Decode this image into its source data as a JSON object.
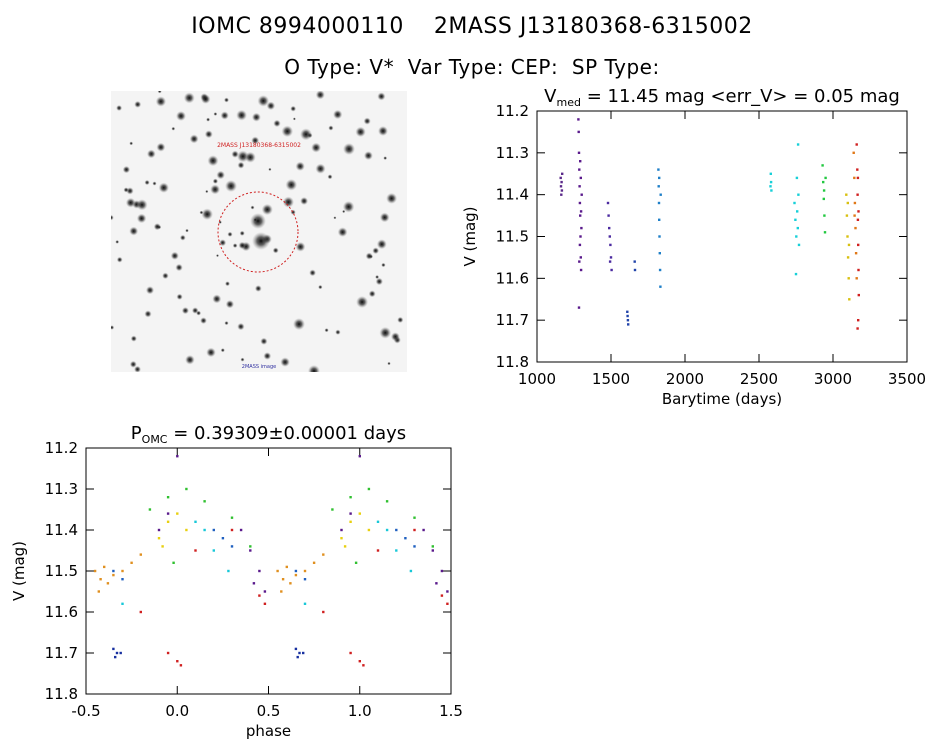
{
  "header": {
    "line1": "IOMC 8994000110    2MASS J13180368-6315002",
    "line2": "O Type: V*  Var Type: CEP:  SP Type:"
  },
  "finder": {
    "label_top": "2MASS J13180368-6315002",
    "label_bottom": "2MASS image"
  },
  "chart_data": [
    {
      "type": "scatter",
      "title_prefix": "V",
      "title_sub": "med",
      "title_rest": " = 11.45 mag <err_V> = 0.05 mag",
      "xlabel": "Barytime (days)",
      "ylabel": "V (mag)",
      "xlim": [
        1000,
        3500
      ],
      "ylim": [
        11.8,
        11.2
      ],
      "xticks": [
        "1000",
        "1500",
        "2000",
        "2500",
        "3000",
        "3500"
      ],
      "yticks": [
        "11.2",
        "11.3",
        "11.4",
        "11.5",
        "11.6",
        "11.7",
        "11.8"
      ],
      "series": [
        {
          "name": "segment 1",
          "color": "#5b2a8a",
          "points": [
            [
              1160,
              11.36
            ],
            [
              1162,
              11.38
            ],
            [
              1164,
              11.4
            ],
            [
              1166,
              11.37
            ],
            [
              1168,
              11.39
            ],
            [
              1170,
              11.35
            ]
          ]
        },
        {
          "name": "segment 2",
          "color": "#5a1a8c",
          "points": [
            [
              1280,
              11.22
            ],
            [
              1282,
              11.25
            ],
            [
              1284,
              11.3
            ],
            [
              1286,
              11.34
            ],
            [
              1288,
              11.38
            ],
            [
              1290,
              11.42
            ],
            [
              1292,
              11.45
            ],
            [
              1294,
              11.5
            ],
            [
              1296,
              11.55
            ],
            [
              1298,
              11.58
            ],
            [
              1300,
              11.48
            ],
            [
              1302,
              11.4
            ],
            [
              1284,
              11.67
            ],
            [
              1290,
              11.52
            ],
            [
              1296,
              11.36
            ],
            [
              1298,
              11.44
            ],
            [
              1286,
              11.56
            ],
            [
              1292,
              11.32
            ]
          ]
        },
        {
          "name": "segment 3",
          "color": "#4b2aa0",
          "points": [
            [
              1480,
              11.42
            ],
            [
              1484,
              11.45
            ],
            [
              1488,
              11.48
            ],
            [
              1492,
              11.5
            ],
            [
              1496,
              11.52
            ],
            [
              1500,
              11.55
            ],
            [
              1504,
              11.58
            ],
            [
              1494,
              11.56
            ]
          ]
        },
        {
          "name": "segment 4",
          "color": "#2244aa",
          "points": [
            [
              1610,
              11.68
            ],
            [
              1612,
              11.69
            ],
            [
              1614,
              11.7
            ],
            [
              1616,
              11.71
            ],
            [
              1660,
              11.56
            ],
            [
              1662,
              11.58
            ]
          ]
        },
        {
          "name": "segment 5",
          "color": "#1f7fc8",
          "points": [
            [
              1820,
              11.34
            ],
            [
              1822,
              11.38
            ],
            [
              1824,
              11.42
            ],
            [
              1826,
              11.46
            ],
            [
              1828,
              11.5
            ],
            [
              1830,
              11.54
            ],
            [
              1832,
              11.58
            ],
            [
              1834,
              11.62
            ],
            [
              1836,
              11.4
            ],
            [
              1826,
              11.36
            ]
          ]
        },
        {
          "name": "segment 6",
          "color": "#17d0d8",
          "points": [
            [
              2580,
              11.35
            ],
            [
              2582,
              11.37
            ],
            [
              2584,
              11.39
            ],
            [
              2578,
              11.38
            ],
            [
              2740,
              11.42
            ],
            [
              2746,
              11.46
            ],
            [
              2752,
              11.5
            ],
            [
              2758,
              11.44
            ],
            [
              2762,
              11.48
            ],
            [
              2766,
              11.4
            ],
            [
              2770,
              11.52
            ],
            [
              2756,
              11.36
            ],
            [
              2764,
              11.28
            ],
            [
              2750,
              11.59
            ]
          ]
        },
        {
          "name": "segment 7",
          "color": "#22c840",
          "points": [
            [
              2930,
              11.33
            ],
            [
              2934,
              11.37
            ],
            [
              2938,
              11.41
            ],
            [
              2942,
              11.45
            ],
            [
              2946,
              11.49
            ],
            [
              2940,
              11.39
            ],
            [
              2950,
              11.36
            ]
          ]
        },
        {
          "name": "segment 8",
          "color": "#d8c010",
          "points": [
            [
              3090,
              11.4
            ],
            [
              3094,
              11.45
            ],
            [
              3098,
              11.5
            ],
            [
              3102,
              11.55
            ],
            [
              3106,
              11.6
            ],
            [
              3110,
              11.65
            ],
            [
              3100,
              11.42
            ],
            [
              3108,
              11.52
            ]
          ]
        },
        {
          "name": "segment 9",
          "color": "#e07818",
          "points": [
            [
              3140,
              11.3
            ],
            [
              3144,
              11.36
            ],
            [
              3148,
              11.42
            ],
            [
              3152,
              11.48
            ],
            [
              3156,
              11.54
            ],
            [
              3160,
              11.6
            ],
            [
              3146,
              11.45
            ]
          ]
        },
        {
          "name": "segment 10",
          "color": "#d02020",
          "points": [
            [
              3160,
              11.28
            ],
            [
              3164,
              11.34
            ],
            [
              3166,
              11.4
            ],
            [
              3168,
              11.46
            ],
            [
              3170,
              11.52
            ],
            [
              3172,
              11.58
            ],
            [
              3174,
              11.64
            ],
            [
              3166,
              11.72
            ],
            [
              3170,
              11.7
            ],
            [
              3168,
              11.36
            ],
            [
              3172,
              11.44
            ]
          ]
        }
      ]
    },
    {
      "type": "scatter",
      "title_prefix": "P",
      "title_sub": "OMC",
      "title_rest": " = 0.39309±0.00001 days",
      "xlabel": "phase",
      "ylabel": "V (mag)",
      "xlim": [
        -0.5,
        1.5
      ],
      "ylim": [
        11.8,
        11.2
      ],
      "xticks": [
        "-0.5",
        "0.0",
        "0.5",
        "1.0",
        "1.5"
      ],
      "yticks": [
        "11.2",
        "11.3",
        "11.4",
        "11.5",
        "11.6",
        "11.7",
        "11.8"
      ],
      "series": [
        {
          "name": "orange",
          "color": "#e09020",
          "points": [
            [
              -0.45,
              11.5
            ],
            [
              -0.42,
              11.52
            ],
            [
              -0.4,
              11.49
            ],
            [
              -0.38,
              11.53
            ],
            [
              -0.35,
              11.51
            ],
            [
              -0.3,
              11.5
            ],
            [
              -0.25,
              11.48
            ],
            [
              -0.2,
              11.46
            ],
            [
              0.55,
              11.5
            ],
            [
              0.58,
              11.52
            ],
            [
              0.6,
              11.49
            ],
            [
              0.62,
              11.53
            ],
            [
              0.65,
              11.51
            ],
            [
              0.7,
              11.5
            ],
            [
              0.75,
              11.48
            ],
            [
              0.8,
              11.46
            ],
            [
              -0.43,
              11.55
            ],
            [
              0.57,
              11.55
            ]
          ]
        },
        {
          "name": "yellow",
          "color": "#e8d010",
          "points": [
            [
              -0.1,
              11.42
            ],
            [
              -0.05,
              11.38
            ],
            [
              0.0,
              11.36
            ],
            [
              0.05,
              11.4
            ],
            [
              0.9,
              11.42
            ],
            [
              0.95,
              11.38
            ],
            [
              1.0,
              11.36
            ],
            [
              1.05,
              11.4
            ],
            [
              -0.08,
              11.44
            ],
            [
              0.92,
              11.44
            ]
          ]
        },
        {
          "name": "green",
          "color": "#30c030",
          "points": [
            [
              -0.15,
              11.35
            ],
            [
              -0.05,
              11.32
            ],
            [
              0.05,
              11.3
            ],
            [
              0.15,
              11.33
            ],
            [
              0.3,
              11.37
            ],
            [
              0.4,
              11.44
            ],
            [
              0.85,
              11.35
            ],
            [
              0.95,
              11.32
            ],
            [
              1.05,
              11.3
            ],
            [
              1.15,
              11.33
            ],
            [
              1.3,
              11.37
            ],
            [
              1.4,
              11.44
            ],
            [
              -0.02,
              11.48
            ],
            [
              0.98,
              11.48
            ]
          ]
        },
        {
          "name": "cyan",
          "color": "#18c8d8",
          "points": [
            [
              0.1,
              11.38
            ],
            [
              0.15,
              11.4
            ],
            [
              0.2,
              11.45
            ],
            [
              0.28,
              11.5
            ],
            [
              1.1,
              11.38
            ],
            [
              1.15,
              11.4
            ],
            [
              1.2,
              11.45
            ],
            [
              1.28,
              11.5
            ],
            [
              -0.3,
              11.58
            ],
            [
              0.7,
              11.58
            ]
          ]
        },
        {
          "name": "blue",
          "color": "#2060c0",
          "points": [
            [
              -0.35,
              11.5
            ],
            [
              -0.3,
              11.52
            ],
            [
              0.2,
              11.4
            ],
            [
              0.25,
              11.42
            ],
            [
              0.3,
              11.44
            ],
            [
              0.65,
              11.5
            ],
            [
              0.7,
              11.52
            ],
            [
              1.2,
              11.4
            ],
            [
              1.25,
              11.42
            ],
            [
              1.3,
              11.44
            ]
          ]
        },
        {
          "name": "darkblue",
          "color": "#1830a0",
          "points": [
            [
              -0.35,
              11.69
            ],
            [
              -0.33,
              11.7
            ],
            [
              -0.31,
              11.7
            ],
            [
              -0.34,
              11.71
            ],
            [
              0.65,
              11.69
            ],
            [
              0.67,
              11.7
            ],
            [
              0.69,
              11.7
            ],
            [
              0.66,
              11.71
            ]
          ]
        },
        {
          "name": "purple",
          "color": "#5a1a8c",
          "points": [
            [
              0.0,
              11.22
            ],
            [
              0.35,
              11.4
            ],
            [
              0.4,
              11.45
            ],
            [
              0.45,
              11.5
            ],
            [
              0.48,
              11.55
            ],
            [
              -0.1,
              11.4
            ],
            [
              -0.05,
              11.36
            ],
            [
              1.0,
              11.22
            ],
            [
              1.35,
              11.4
            ],
            [
              1.4,
              11.45
            ],
            [
              1.45,
              11.5
            ],
            [
              1.48,
              11.55
            ],
            [
              0.9,
              11.4
            ],
            [
              0.95,
              11.36
            ],
            [
              0.42,
              11.53
            ],
            [
              1.42,
              11.53
            ]
          ]
        },
        {
          "name": "red",
          "color": "#d02020",
          "points": [
            [
              -0.05,
              11.7
            ],
            [
              0.0,
              11.72
            ],
            [
              0.02,
              11.73
            ],
            [
              0.45,
              11.56
            ],
            [
              0.48,
              11.58
            ],
            [
              0.3,
              11.4
            ],
            [
              -0.2,
              11.6
            ],
            [
              0.95,
              11.7
            ],
            [
              1.0,
              11.72
            ],
            [
              1.02,
              11.73
            ],
            [
              1.45,
              11.56
            ],
            [
              1.48,
              11.58
            ],
            [
              1.3,
              11.4
            ],
            [
              0.8,
              11.6
            ],
            [
              0.1,
              11.45
            ],
            [
              1.1,
              11.45
            ]
          ]
        }
      ]
    }
  ]
}
